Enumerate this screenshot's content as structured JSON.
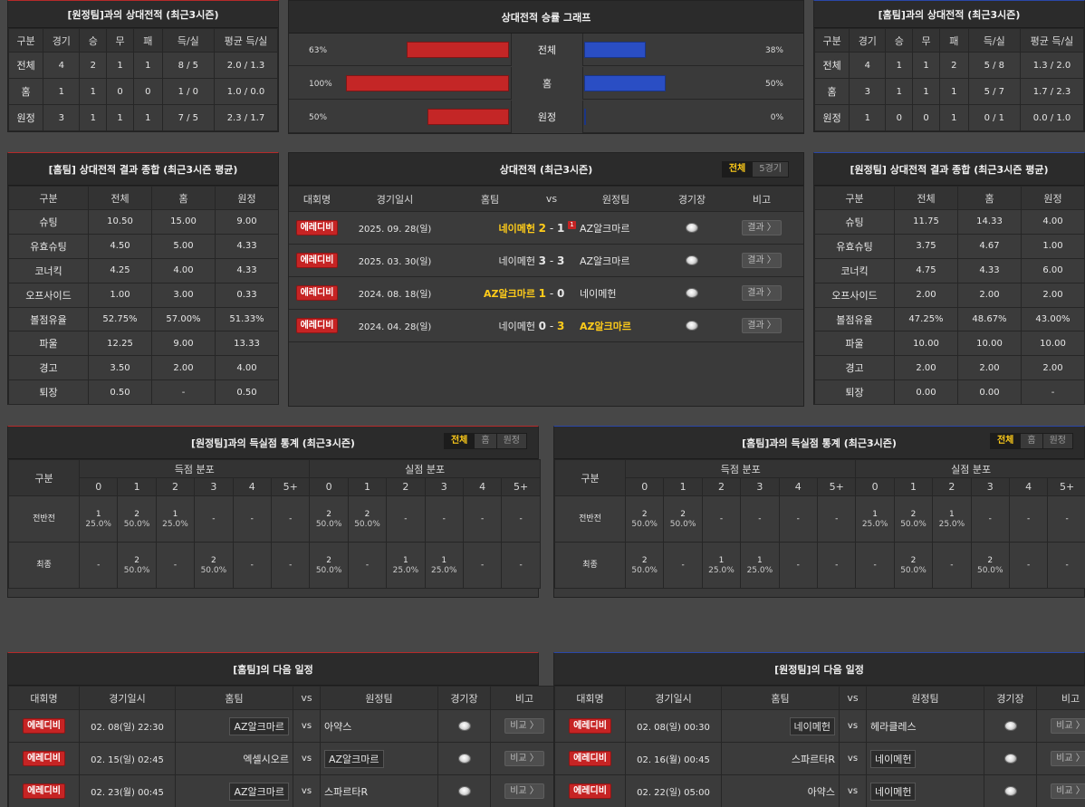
{
  "h2h_away": {
    "title": "[원정팀]과의 상대전적 (최근3시즌)",
    "headers": [
      "구분",
      "경기",
      "승",
      "무",
      "패",
      "득/실",
      "평균 득/실"
    ],
    "rows": [
      [
        "전체",
        "4",
        "2",
        "1",
        "1",
        "8 / 5",
        "2.0 / 1.3"
      ],
      [
        "홈",
        "1",
        "1",
        "0",
        "0",
        "1 / 0",
        "1.0 / 0.0"
      ],
      [
        "원정",
        "3",
        "1",
        "1",
        "1",
        "7 / 5",
        "2.3 / 1.7"
      ]
    ]
  },
  "graph": {
    "title": "상대전적 승률 그래프",
    "rows": [
      {
        "label": "전체",
        "left": "63%",
        "right": "38%",
        "left_val": 63,
        "right_val": 38
      },
      {
        "label": "홈",
        "left": "100%",
        "right": "50%",
        "left_val": 100,
        "right_val": 50
      },
      {
        "label": "원정",
        "left": "50%",
        "right": "0%",
        "left_val": 50,
        "right_val": 0
      }
    ]
  },
  "h2h_home": {
    "title": "[홈팀]과의 상대전적 (최근3시즌)",
    "headers": [
      "구분",
      "경기",
      "승",
      "무",
      "패",
      "득/실",
      "평균 득/실"
    ],
    "rows": [
      [
        "전체",
        "4",
        "1",
        "1",
        "2",
        "5 / 8",
        "1.3 / 2.0"
      ],
      [
        "홈",
        "3",
        "1",
        "1",
        "1",
        "5 / 7",
        "1.7 / 2.3"
      ],
      [
        "원정",
        "1",
        "0",
        "0",
        "1",
        "0 / 1",
        "0.0 / 1.0"
      ]
    ]
  },
  "summary_home": {
    "title": "[홈팀] 상대전적 결과 종합 (최근3시즌 평균)",
    "headers": [
      "구분",
      "전체",
      "홈",
      "원정"
    ],
    "rows": [
      [
        "슈팅",
        "10.50",
        "15.00",
        "9.00"
      ],
      [
        "유효슈팅",
        "4.50",
        "5.00",
        "4.33"
      ],
      [
        "코너킥",
        "4.25",
        "4.00",
        "4.33"
      ],
      [
        "오프사이드",
        "1.00",
        "3.00",
        "0.33"
      ],
      [
        "볼점유율",
        "52.75%",
        "57.00%",
        "51.33%"
      ],
      [
        "파울",
        "12.25",
        "9.00",
        "13.33"
      ],
      [
        "경고",
        "3.50",
        "2.00",
        "4.00"
      ],
      [
        "퇴장",
        "0.50",
        "-",
        "0.50"
      ]
    ]
  },
  "matches": {
    "title": "상대전적 (최근3시즌)",
    "tabs": [
      "전체",
      "5경기"
    ],
    "headers": [
      "대회명",
      "경기일시",
      "홈팀",
      "vs",
      "원정팀",
      "경기장",
      "비고"
    ],
    "rows": [
      {
        "league": "에레디비",
        "date": "2025. 09. 28(일)",
        "home": "네이메헌",
        "hs": "2",
        "as": "1",
        "away": "AZ알크마르",
        "badge": "1",
        "hw": true,
        "aw": false,
        "btn": "결과 〉"
      },
      {
        "league": "에레디비",
        "date": "2025. 03. 30(일)",
        "home": "네이메헌",
        "hs": "3",
        "as": "3",
        "away": "AZ알크마르",
        "badge": "",
        "hw": false,
        "aw": false,
        "btn": "결과 〉"
      },
      {
        "league": "에레디비",
        "date": "2024. 08. 18(일)",
        "home": "AZ알크마르",
        "hs": "1",
        "as": "0",
        "away": "네이메헌",
        "badge": "",
        "hw": true,
        "aw": false,
        "btn": "결과 〉"
      },
      {
        "league": "에레디비",
        "date": "2024. 04. 28(일)",
        "home": "네이메헌",
        "hs": "0",
        "as": "3",
        "away": "AZ알크마르",
        "badge": "",
        "hw": false,
        "aw": true,
        "btn": "결과 〉"
      }
    ]
  },
  "summary_away": {
    "title": "[원정팀] 상대전적 결과 종합 (최근3시즌 평균)",
    "headers": [
      "구분",
      "전체",
      "홈",
      "원정"
    ],
    "rows": [
      [
        "슈팅",
        "11.75",
        "14.33",
        "4.00"
      ],
      [
        "유효슈팅",
        "3.75",
        "4.67",
        "1.00"
      ],
      [
        "코너킥",
        "4.75",
        "4.33",
        "6.00"
      ],
      [
        "오프사이드",
        "2.00",
        "2.00",
        "2.00"
      ],
      [
        "볼점유율",
        "47.25%",
        "48.67%",
        "43.00%"
      ],
      [
        "파울",
        "10.00",
        "10.00",
        "10.00"
      ],
      [
        "경고",
        "2.00",
        "2.00",
        "2.00"
      ],
      [
        "퇴장",
        "0.00",
        "0.00",
        "-"
      ]
    ]
  },
  "goals_left": {
    "title": "[원정팀]과의 득실점 통계 (최근3시즌)",
    "tabs": [
      "전체",
      "홈",
      "원정"
    ],
    "col_label": "구분",
    "scored": "득점 분포",
    "conceded": "실점 분포",
    "buckets": [
      "0",
      "1",
      "2",
      "3",
      "4",
      "5+"
    ],
    "rows": [
      {
        "label": "전반전",
        "cells": [
          [
            "1",
            "25.0%"
          ],
          [
            "2",
            "50.0%"
          ],
          [
            "1",
            "25.0%"
          ],
          [
            "-",
            ""
          ],
          [
            "-",
            ""
          ],
          [
            "-",
            ""
          ],
          [
            "2",
            "50.0%"
          ],
          [
            "2",
            "50.0%"
          ],
          [
            "-",
            ""
          ],
          [
            "-",
            ""
          ],
          [
            "-",
            ""
          ],
          [
            "-",
            ""
          ]
        ]
      },
      {
        "label": "최종",
        "cells": [
          [
            "-",
            ""
          ],
          [
            "2",
            "50.0%"
          ],
          [
            "-",
            ""
          ],
          [
            "2",
            "50.0%"
          ],
          [
            "-",
            ""
          ],
          [
            "-",
            ""
          ],
          [
            "2",
            "50.0%"
          ],
          [
            "-",
            ""
          ],
          [
            "1",
            "25.0%"
          ],
          [
            "1",
            "25.0%"
          ],
          [
            "-",
            ""
          ],
          [
            "-",
            ""
          ]
        ]
      }
    ]
  },
  "goals_right": {
    "title": "[홈팀]과의 득실점 통계 (최근3시즌)",
    "tabs": [
      "전체",
      "홈",
      "원정"
    ],
    "col_label": "구분",
    "scored": "득점 분포",
    "conceded": "실점 분포",
    "buckets": [
      "0",
      "1",
      "2",
      "3",
      "4",
      "5+"
    ],
    "rows": [
      {
        "label": "전반전",
        "cells": [
          [
            "2",
            "50.0%"
          ],
          [
            "2",
            "50.0%"
          ],
          [
            "-",
            ""
          ],
          [
            "-",
            ""
          ],
          [
            "-",
            ""
          ],
          [
            "-",
            ""
          ],
          [
            "1",
            "25.0%"
          ],
          [
            "2",
            "50.0%"
          ],
          [
            "1",
            "25.0%"
          ],
          [
            "-",
            ""
          ],
          [
            "-",
            ""
          ],
          [
            "-",
            ""
          ]
        ]
      },
      {
        "label": "최종",
        "cells": [
          [
            "2",
            "50.0%"
          ],
          [
            "-",
            ""
          ],
          [
            "1",
            "25.0%"
          ],
          [
            "1",
            "25.0%"
          ],
          [
            "-",
            ""
          ],
          [
            "-",
            ""
          ],
          [
            "-",
            ""
          ],
          [
            "2",
            "50.0%"
          ],
          [
            "-",
            ""
          ],
          [
            "2",
            "50.0%"
          ],
          [
            "-",
            ""
          ],
          [
            "-",
            ""
          ]
        ]
      }
    ]
  },
  "next_home": {
    "title": "[홈팀]의 다음 일정",
    "headers": [
      "대회명",
      "경기일시",
      "홈팀",
      "vs",
      "원정팀",
      "경기장",
      "비고"
    ],
    "rows": [
      {
        "league": "에레디비",
        "date": "02. 08(일) 22:30",
        "home": "AZ알크마르",
        "away": "아약스",
        "boxed": "home",
        "btn": "비교 〉"
      },
      {
        "league": "에레디비",
        "date": "02. 15(일) 02:45",
        "home": "엑셀시오르",
        "away": "AZ알크마르",
        "boxed": "away",
        "btn": "비교 〉"
      },
      {
        "league": "에레디비",
        "date": "02. 23(월) 00:45",
        "home": "AZ알크마르",
        "away": "스파르타R",
        "boxed": "home",
        "btn": "비교 〉"
      }
    ]
  },
  "next_away": {
    "title": "[원정팀]의 다음 일정",
    "headers": [
      "대회명",
      "경기일시",
      "홈팀",
      "vs",
      "원정팀",
      "경기장",
      "비고"
    ],
    "rows": [
      {
        "league": "에레디비",
        "date": "02. 08(일) 00:30",
        "home": "네이메헌",
        "away": "헤라클레스",
        "boxed": "home",
        "btn": "비교 〉"
      },
      {
        "league": "에레디비",
        "date": "02. 16(월) 00:45",
        "home": "스파르타R",
        "away": "네이메헌",
        "boxed": "away",
        "btn": "비교 〉"
      },
      {
        "league": "에레디비",
        "date": "02. 22(일) 05:00",
        "home": "아약스",
        "away": "네이메헌",
        "boxed": "away",
        "btn": "비교 〉"
      }
    ]
  }
}
